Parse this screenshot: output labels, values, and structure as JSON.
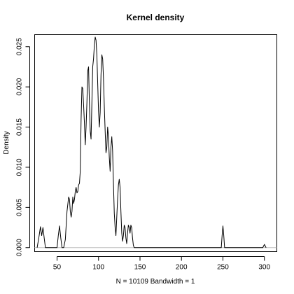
{
  "chart_data": {
    "type": "line",
    "title": "Kernel density",
    "xlabel": "N = 10109   Bandwidth = 1",
    "ylabel": "Density",
    "xlim": [
      23,
      315
    ],
    "ylim": [
      -0.0005,
      0.0265
    ],
    "x_ticks": [
      50,
      100,
      150,
      200,
      250,
      300
    ],
    "y_ticks": [
      0.0,
      0.005,
      0.01,
      0.015,
      0.02,
      0.025
    ],
    "x_tick_labels": [
      "50",
      "100",
      "150",
      "200",
      "250",
      "300"
    ],
    "y_tick_labels": [
      "0.000",
      "0.005",
      "0.010",
      "0.015",
      "0.020",
      "0.025"
    ],
    "grid": false,
    "zero_baseline": true,
    "series": [
      {
        "x": [
          26,
          28,
          30,
          31.5,
          33,
          34.5,
          36,
          50,
          51.5,
          53,
          54.5,
          56,
          58,
          60,
          62,
          64,
          65,
          66,
          67,
          68,
          69,
          70,
          71,
          72,
          73,
          74,
          75,
          76,
          77,
          78,
          79,
          80,
          81,
          82,
          83,
          84,
          85,
          86,
          87,
          88,
          89,
          90,
          91,
          92,
          93,
          94,
          95,
          96,
          97,
          98,
          99,
          100,
          101,
          102,
          103,
          104,
          105,
          106,
          107,
          108,
          109,
          110,
          111,
          112,
          113,
          114,
          115,
          116,
          117,
          118,
          119,
          120,
          121,
          122,
          123,
          124,
          125,
          126,
          127,
          128,
          129,
          130,
          131,
          132,
          133,
          134,
          135,
          136,
          137,
          138,
          139,
          140,
          141,
          142,
          143,
          144,
          145,
          146,
          147,
          148,
          149,
          150,
          248,
          249,
          250,
          251,
          252,
          253,
          298,
          299,
          300,
          301,
          302
        ],
        "y": [
          0,
          0.0012,
          0.0026,
          0.0015,
          0.0025,
          0.0012,
          0,
          0,
          0.0015,
          0.0027,
          0.0012,
          0,
          0,
          0.001,
          0.0045,
          0.0063,
          0.006,
          0.0045,
          0.0038,
          0.0045,
          0.0063,
          0.0055,
          0.006,
          0.007,
          0.0075,
          0.0068,
          0.007,
          0.0078,
          0.008,
          0.0095,
          0.016,
          0.02,
          0.0198,
          0.0178,
          0.0155,
          0.0128,
          0.015,
          0.018,
          0.022,
          0.0225,
          0.018,
          0.0145,
          0.0135,
          0.018,
          0.0225,
          0.0235,
          0.0252,
          0.0262,
          0.0258,
          0.024,
          0.0205,
          0.017,
          0.015,
          0.0168,
          0.0215,
          0.024,
          0.0235,
          0.021,
          0.0175,
          0.0145,
          0.0118,
          0.0125,
          0.015,
          0.0138,
          0.0112,
          0.0095,
          0.0125,
          0.0138,
          0.012,
          0.008,
          0.0043,
          0.0025,
          0.0015,
          0.0038,
          0.006,
          0.0078,
          0.0085,
          0.0075,
          0.0045,
          0.0018,
          0.0008,
          0.0015,
          0.0028,
          0.0025,
          0.0012,
          0.0005,
          0.0018,
          0.0028,
          0.0025,
          0.0018,
          0.0028,
          0.0025,
          0.0012,
          0.0003,
          0,
          0,
          0,
          0,
          0,
          0,
          0,
          0,
          0,
          0.0015,
          0.0027,
          0.0015,
          0,
          0,
          0,
          0.0002,
          0.0004,
          0.0002,
          0
        ]
      }
    ]
  }
}
